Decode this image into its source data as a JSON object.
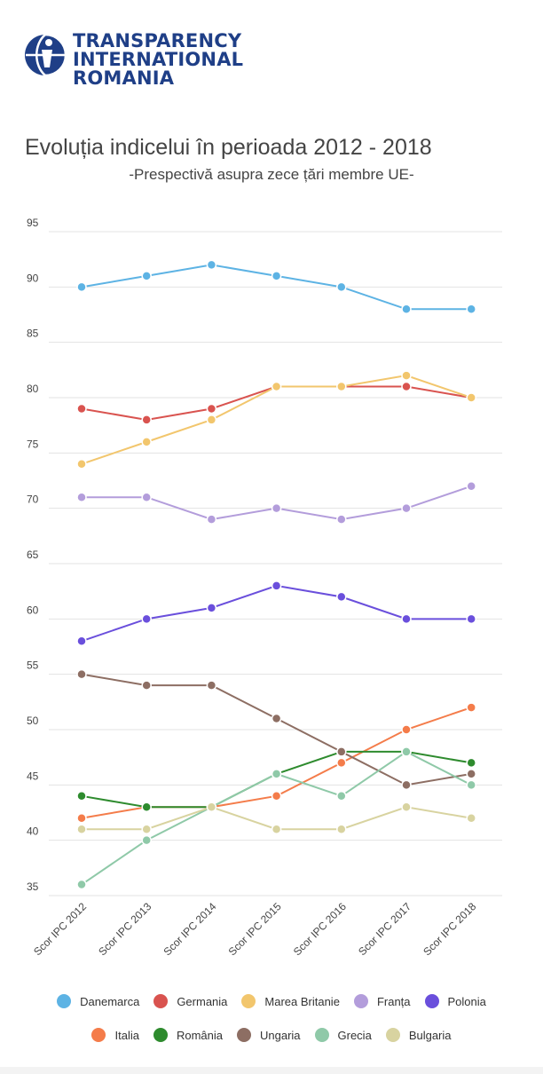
{
  "logo": {
    "lines": [
      "TRANSPARENCY",
      "INTERNATIONAL",
      "ROMANIA"
    ],
    "icon": "ti-globe-person-icon",
    "color": "#1f3f87"
  },
  "header": {
    "title": "Evoluția indicelui în perioada 2012 - 2018",
    "subtitle": "-Prespectivă asupra zece țări membre UE-"
  },
  "chart_data": {
    "type": "line",
    "title": "Evoluția indicelui în perioada 2012 - 2018",
    "subtitle": "-Prespectivă asupra zece țări membre UE-",
    "xlabel": "",
    "ylabel": "",
    "categories": [
      "Scor IPC 2012",
      "Scor IPC 2013",
      "Scor IPC 2014",
      "Scor IPC 2015",
      "Scor IPC 2016",
      "Scor IPC 2017",
      "Scor IPC 2018"
    ],
    "ylim": [
      35,
      95
    ],
    "yticks": [
      95,
      90,
      85,
      80,
      75,
      70,
      65,
      60,
      55,
      50,
      45,
      40,
      35
    ],
    "grid": true,
    "legend_placement": "bottom",
    "series": [
      {
        "name": "Danemarca",
        "color": "#5db3e4",
        "values": [
          90,
          91,
          92,
          91,
          90,
          88,
          88
        ]
      },
      {
        "name": "Germania",
        "color": "#d9534f",
        "values": [
          79,
          78,
          79,
          81,
          81,
          81,
          80
        ]
      },
      {
        "name": "Marea Britanie",
        "color": "#f2c66d",
        "values": [
          74,
          76,
          78,
          81,
          81,
          82,
          80
        ]
      },
      {
        "name": "Franța",
        "color": "#b39ddb",
        "values": [
          71,
          71,
          69,
          70,
          69,
          70,
          72
        ]
      },
      {
        "name": "Polonia",
        "color": "#6a4fdc",
        "values": [
          58,
          60,
          61,
          63,
          62,
          60,
          60
        ]
      },
      {
        "name": "Italia",
        "color": "#f47c4a",
        "values": [
          42,
          43,
          43,
          44,
          47,
          50,
          52
        ]
      },
      {
        "name": "România",
        "color": "#2e8b2e",
        "values": [
          44,
          43,
          43,
          46,
          48,
          48,
          47
        ]
      },
      {
        "name": "Ungaria",
        "color": "#8d6e63",
        "values": [
          55,
          54,
          54,
          51,
          48,
          45,
          46
        ]
      },
      {
        "name": "Grecia",
        "color": "#8fc9a8",
        "values": [
          36,
          40,
          43,
          46,
          44,
          48,
          45
        ]
      },
      {
        "name": "Bulgaria",
        "color": "#d8d3a0",
        "values": [
          41,
          41,
          43,
          41,
          41,
          43,
          42
        ]
      }
    ]
  }
}
